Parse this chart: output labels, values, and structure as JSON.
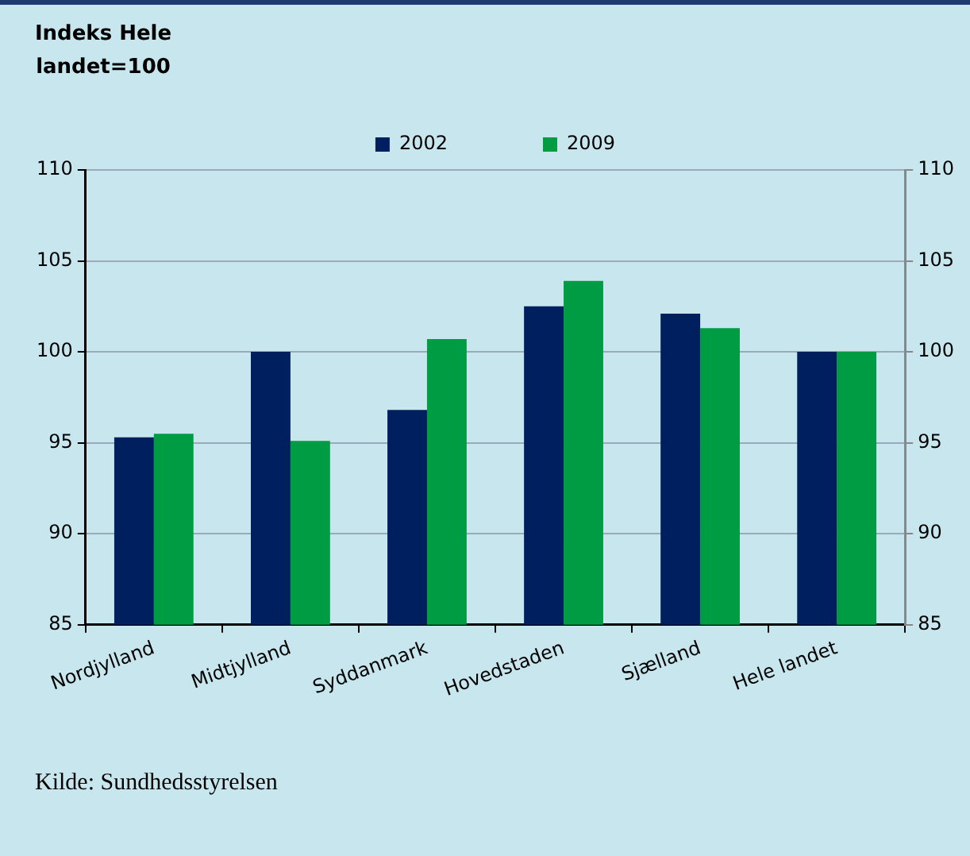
{
  "chart_data": {
    "type": "bar",
    "ylabel": "Indeks Hele landet=100",
    "categories": [
      "Nordjylland",
      "Midtjylland",
      "Syddanmark",
      "Hovedstaden",
      "Sjælland",
      "Hele landet"
    ],
    "series": [
      {
        "name": "2002",
        "color": "#001f5f",
        "values": [
          95.3,
          100.0,
          96.8,
          102.5,
          102.1,
          100.0
        ]
      },
      {
        "name": "2009",
        "color": "#009c44",
        "values": [
          95.5,
          95.1,
          100.7,
          103.9,
          101.3,
          100.0
        ]
      }
    ],
    "ylim": [
      85,
      110
    ],
    "yticks": [
      85,
      90,
      95,
      100,
      105,
      110
    ],
    "y2lim": [
      85,
      110
    ],
    "y2ticks": [
      85,
      90,
      95,
      100,
      105,
      110
    ],
    "grid": "y",
    "legend": "top",
    "annotations": [
      "Kilde: Sundhedsstyrelsen"
    ]
  }
}
